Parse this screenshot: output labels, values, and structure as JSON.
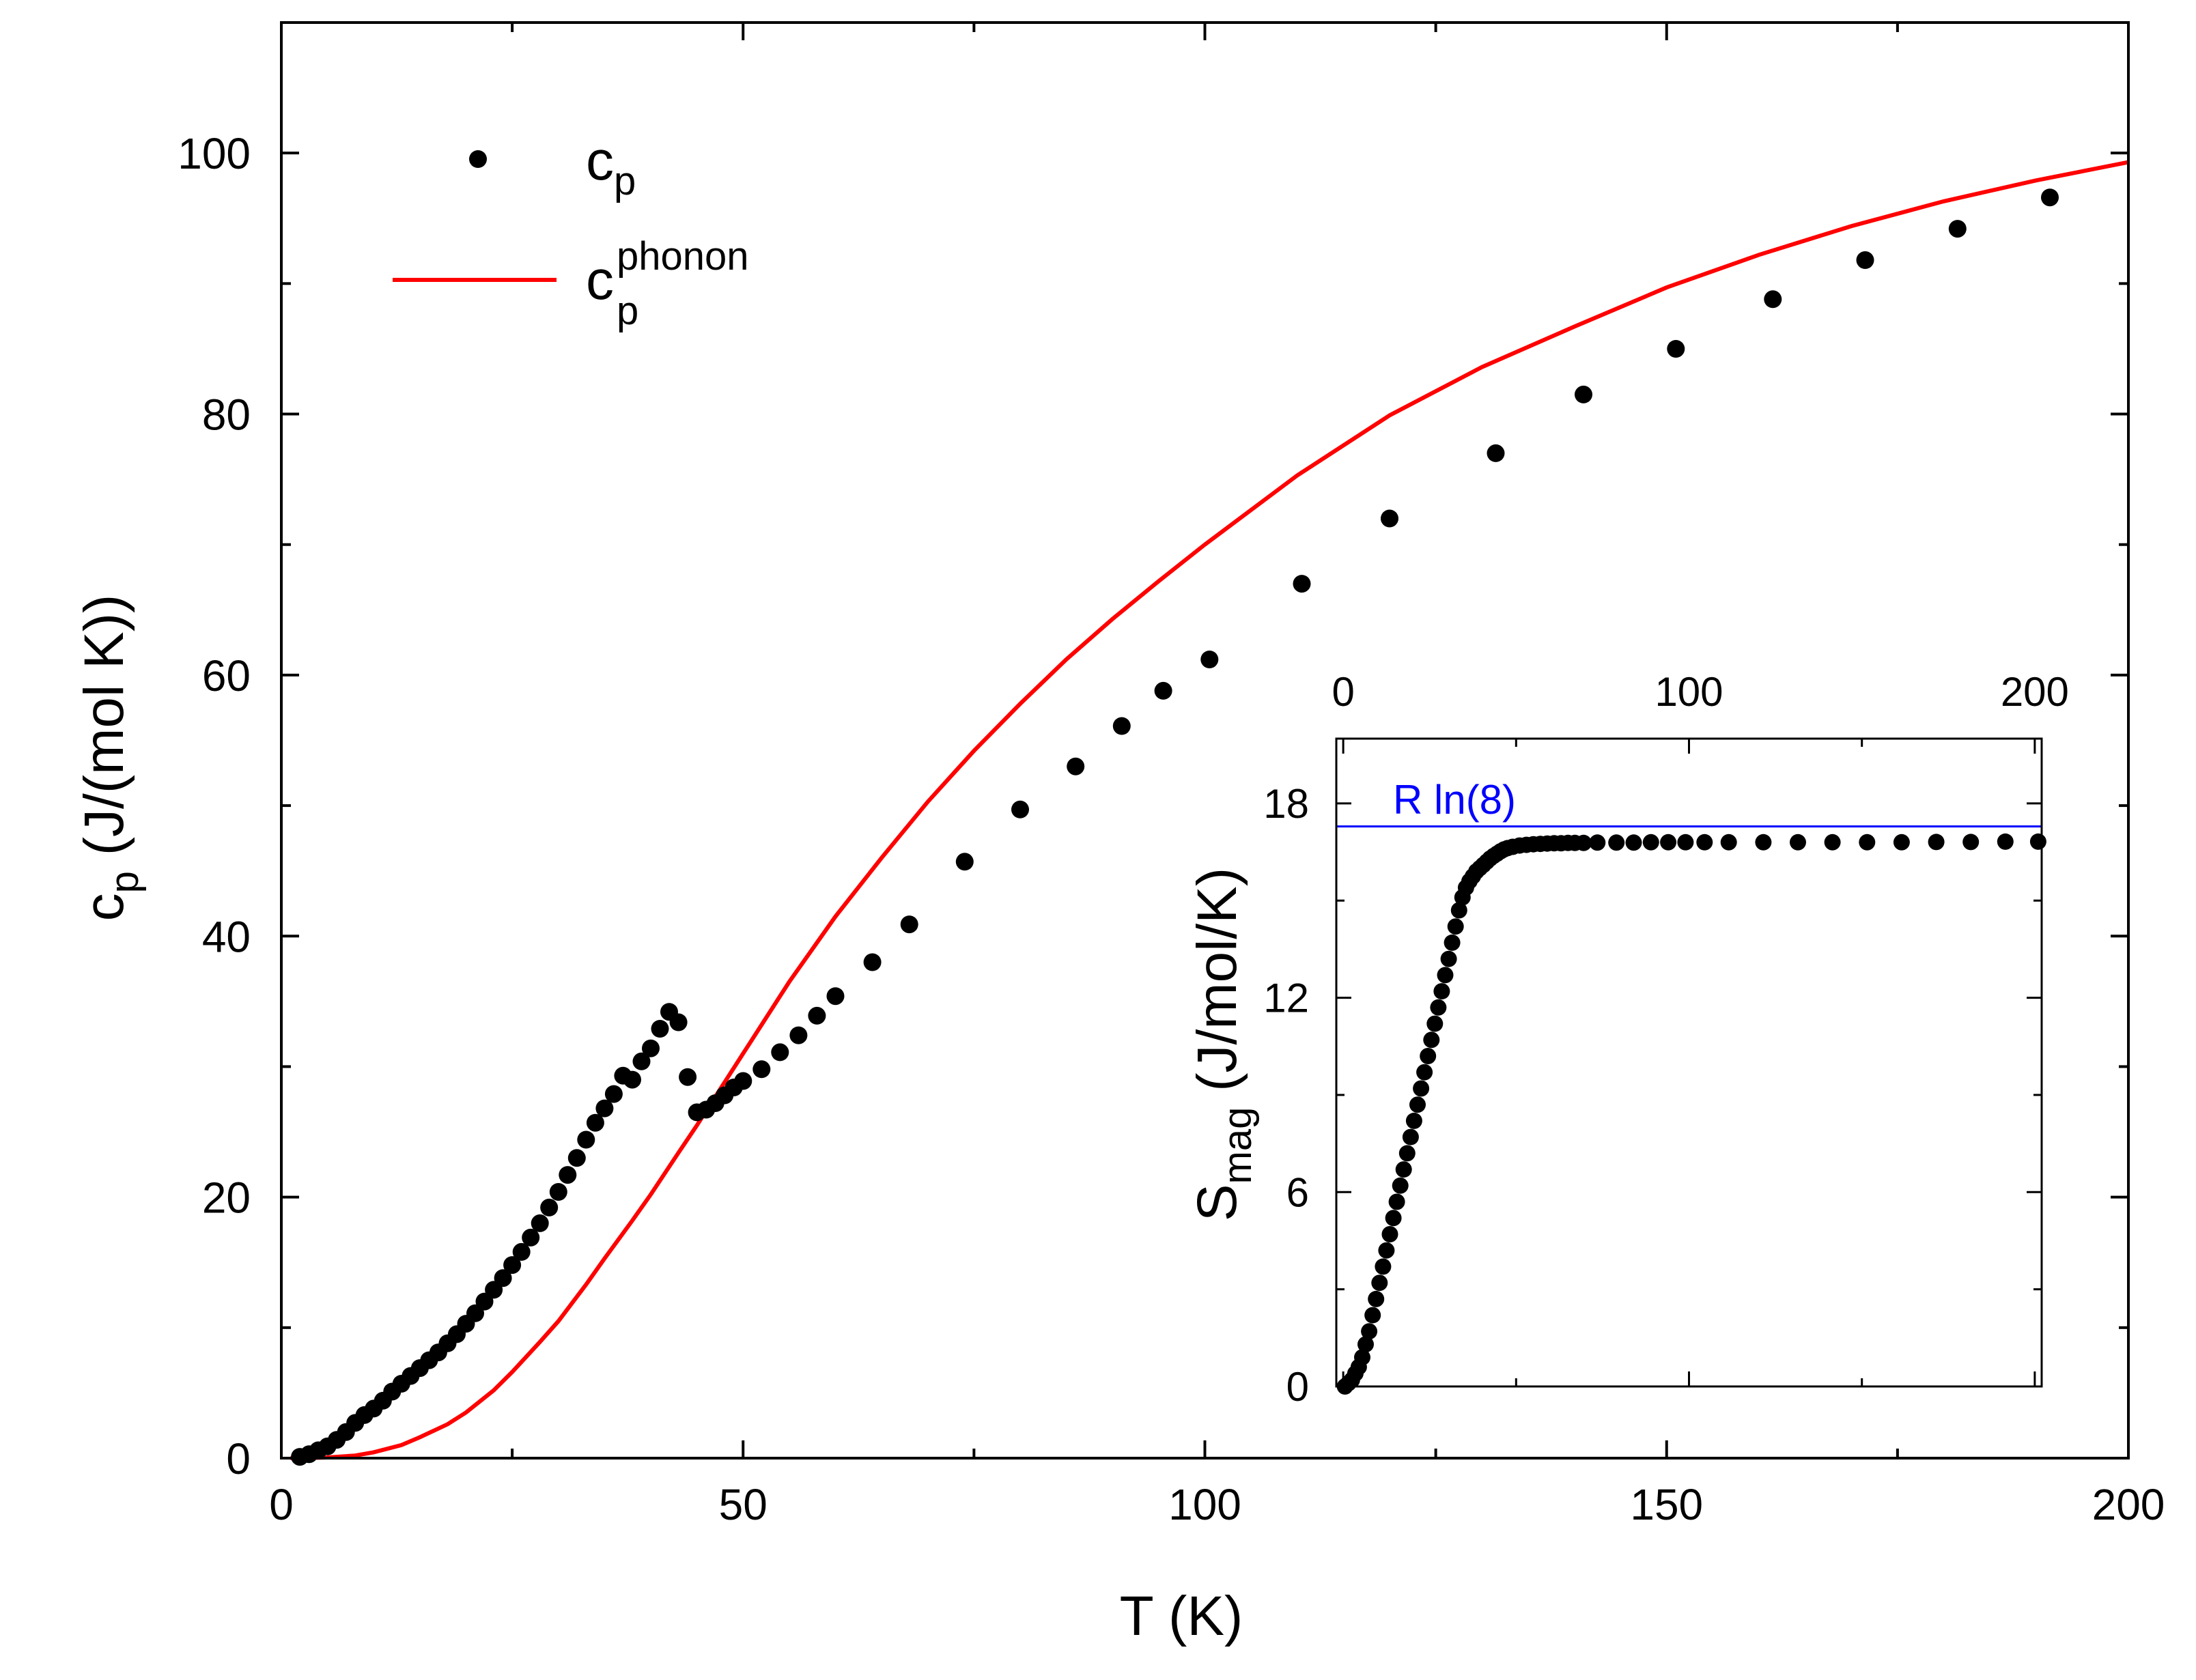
{
  "chart_data": [
    {
      "type": "scatter",
      "name": "main",
      "xlabel": "T (K)",
      "ylabel_main": "c",
      "ylabel_sub": "p",
      "ylabel_rest": " (J/(mol K))",
      "xlim": [
        0,
        200
      ],
      "ylim": [
        0,
        110
      ],
      "xticks": [
        0,
        50,
        100,
        150,
        200
      ],
      "yticks": [
        0,
        20,
        40,
        60,
        80,
        100
      ],
      "legend": [
        {
          "symbol": "dot",
          "label": "c",
          "sub": "p",
          "sup": ""
        },
        {
          "symbol": "line",
          "label": "c",
          "sub": "p",
          "sup": "phonon"
        }
      ],
      "colors": {
        "points": "#000000",
        "phonon": "#ff0000",
        "axis": "#000000"
      },
      "series": [
        {
          "name": "cp",
          "style": "points",
          "x": [
            2.0,
            3.0,
            4.0,
            5.0,
            6.0,
            7.0,
            8.0,
            9.0,
            10.0,
            11.0,
            12.0,
            13.0,
            14.0,
            15.0,
            16.0,
            17.0,
            18.0,
            19.0,
            20.0,
            21.0,
            22.0,
            23.0,
            24.0,
            25.0,
            26.0,
            27.0,
            28.0,
            29.0,
            30.0,
            31.0,
            32.0,
            33.0,
            34.0,
            35.0,
            36.0,
            37.0,
            38.0,
            39.0,
            40.0,
            41.0,
            42.0,
            43.0,
            44.0,
            45.0,
            46.0,
            47.0,
            48.0,
            49.0,
            50.0,
            52.0,
            54.0,
            56.0,
            58.0,
            60.0,
            64.0,
            68.0,
            74.0,
            80.0,
            86.0,
            91.0,
            95.5,
            100.5,
            110.5,
            120.0,
            131.5,
            141.0,
            151.0,
            161.5,
            171.5,
            181.5,
            191.5
          ],
          "y": [
            0.1,
            0.3,
            0.6,
            0.9,
            1.4,
            2.0,
            2.7,
            3.3,
            3.8,
            4.4,
            5.1,
            5.7,
            6.3,
            6.9,
            7.5,
            8.1,
            8.8,
            9.5,
            10.3,
            11.1,
            12.0,
            12.9,
            13.8,
            14.8,
            15.8,
            16.9,
            18.0,
            19.2,
            20.4,
            21.7,
            23.0,
            24.4,
            25.7,
            26.8,
            27.9,
            29.3,
            29.0,
            30.4,
            31.4,
            32.9,
            34.2,
            33.4,
            29.2,
            26.5,
            26.7,
            27.2,
            27.8,
            28.4,
            28.9,
            29.8,
            31.1,
            32.4,
            33.9,
            35.4,
            38.0,
            40.9,
            45.7,
            49.7,
            53.0,
            56.1,
            58.8,
            61.2,
            67.0,
            72.0,
            77.0,
            81.5,
            85.0,
            88.8,
            91.8,
            94.2,
            96.6
          ]
        },
        {
          "name": "cp_phonon",
          "style": "line",
          "x": [
            1,
            3,
            5,
            8,
            10,
            13,
            15,
            18,
            20,
            23,
            25,
            28,
            30,
            33,
            35,
            38,
            40,
            43,
            45,
            48,
            50,
            55,
            60,
            65,
            70,
            75,
            80,
            85,
            90,
            95,
            100,
            110,
            120,
            130,
            140,
            150,
            160,
            170,
            180,
            190,
            200
          ],
          "y": [
            0.0,
            0.01,
            0.05,
            0.2,
            0.45,
            1.0,
            1.6,
            2.6,
            3.5,
            5.2,
            6.6,
            8.9,
            10.5,
            13.3,
            15.3,
            18.2,
            20.2,
            23.4,
            25.5,
            28.8,
            31.0,
            36.5,
            41.5,
            46.0,
            50.3,
            54.2,
            57.8,
            61.2,
            64.3,
            67.2,
            70.0,
            75.3,
            79.9,
            83.6,
            86.7,
            89.7,
            92.2,
            94.4,
            96.3,
            97.9,
            99.3
          ]
        }
      ]
    },
    {
      "type": "scatter",
      "name": "inset",
      "ylabel_main": "S",
      "ylabel_sub": "mag",
      "ylabel_rest": " (J/mol/K)",
      "xlim": [
        -2,
        202
      ],
      "ylim": [
        0,
        20
      ],
      "xticks": [
        0,
        100,
        200
      ],
      "yticks": [
        0,
        6,
        12,
        18
      ],
      "reference_line": {
        "label": "R ln(8)",
        "value": 17.29,
        "color": "#0000ff"
      },
      "series": [
        {
          "name": "Smag",
          "style": "points",
          "x": [
            0.5,
            1.5,
            2.5,
            3.5,
            4.5,
            5.5,
            6.5,
            7.5,
            8.5,
            9.5,
            10.5,
            11.5,
            12.5,
            13.5,
            14.5,
            15.5,
            16.5,
            17.5,
            18.5,
            19.5,
            20.5,
            21.5,
            22.5,
            23.5,
            24.5,
            25.5,
            26.5,
            27.5,
            28.5,
            29.5,
            30.5,
            31.5,
            32.5,
            33.5,
            34.5,
            35.5,
            36.5,
            37.5,
            38.5,
            39.5,
            40.5,
            41.5,
            42.5,
            43.5,
            44.5,
            45.5,
            46.5,
            47.5,
            49.0,
            51.0,
            53.0,
            55.0,
            57.0,
            59.0,
            61.0,
            63.0,
            65.0,
            67.0,
            69.5,
            73.5,
            79.0,
            84.0,
            89.0,
            94.0,
            99.0,
            104.5,
            111.5,
            121.5,
            131.5,
            141.5,
            151.5,
            161.5,
            171.5,
            181.5,
            191.5,
            201.0
          ],
          "y": [
            0.0,
            0.1,
            0.2,
            0.4,
            0.6,
            0.9,
            1.3,
            1.7,
            2.2,
            2.7,
            3.2,
            3.7,
            4.2,
            4.7,
            5.2,
            5.7,
            6.2,
            6.7,
            7.2,
            7.7,
            8.2,
            8.7,
            9.2,
            9.7,
            10.2,
            10.7,
            11.2,
            11.7,
            12.2,
            12.7,
            13.2,
            13.7,
            14.2,
            14.7,
            15.1,
            15.4,
            15.6,
            15.75,
            15.9,
            16.0,
            16.1,
            16.2,
            16.3,
            16.38,
            16.45,
            16.52,
            16.58,
            16.62,
            16.66,
            16.7,
            16.72,
            16.74,
            16.75,
            16.76,
            16.77,
            16.77,
            16.78,
            16.78,
            16.78,
            16.79,
            16.79,
            16.79,
            16.8,
            16.8,
            16.8,
            16.8,
            16.8,
            16.8,
            16.8,
            16.8,
            16.8,
            16.8,
            16.81,
            16.81,
            16.82,
            16.82
          ]
        }
      ]
    }
  ]
}
